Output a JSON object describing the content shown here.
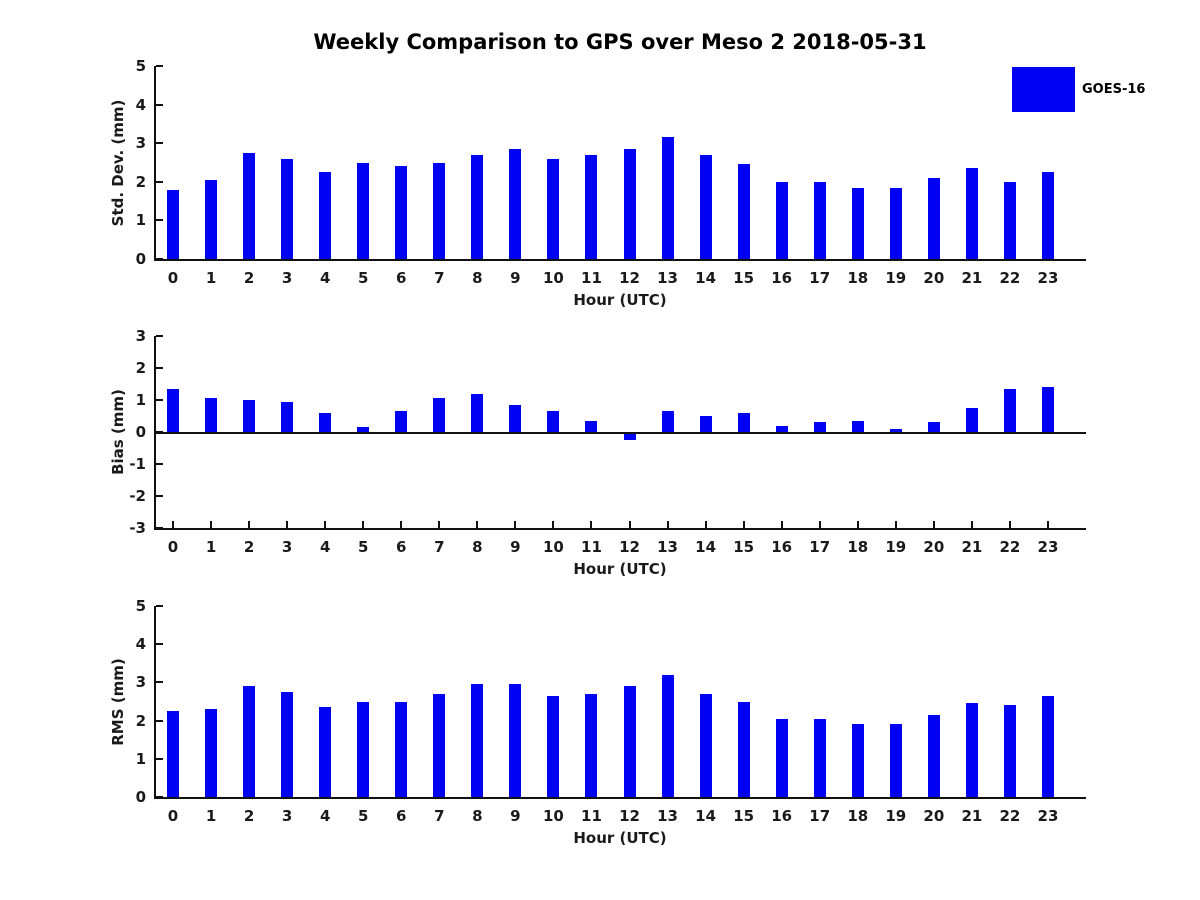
{
  "title": "Weekly Comparison to GPS over Meso 2 2018-05-31",
  "legend": {
    "label": "GOES-16",
    "color": "#0000f2",
    "position": "top-right"
  },
  "colors": {
    "bar": "#0000f2",
    "axis": "#111111",
    "background": "#ffffff",
    "text": "#1a1a1a"
  },
  "chart_data": [
    {
      "type": "bar",
      "title": "",
      "ylabel": "Std. Dev. (mm)",
      "xlabel": "Hour (UTC)",
      "ylim": [
        0,
        5
      ],
      "yticks": [
        0,
        1,
        2,
        3,
        4,
        5
      ],
      "xlim": [
        -0.5,
        24
      ],
      "grid": false,
      "categories": [
        "0",
        "1",
        "2",
        "3",
        "4",
        "5",
        "6",
        "7",
        "8",
        "9",
        "10",
        "11",
        "12",
        "13",
        "14",
        "15",
        "16",
        "17",
        "18",
        "19",
        "20",
        "21",
        "22",
        "23"
      ],
      "series": [
        {
          "name": "GOES-16",
          "values": [
            1.8,
            2.05,
            2.75,
            2.6,
            2.25,
            2.5,
            2.4,
            2.5,
            2.7,
            2.85,
            2.6,
            2.7,
            2.85,
            3.15,
            2.7,
            2.45,
            2.0,
            2.0,
            1.85,
            1.85,
            2.1,
            2.35,
            2.0,
            2.25
          ]
        }
      ]
    },
    {
      "type": "bar",
      "title": "",
      "ylabel": "Bias (mm)",
      "xlabel": "Hour (UTC)",
      "ylim": [
        -3,
        3
      ],
      "yticks": [
        -3,
        -2,
        -1,
        0,
        1,
        2,
        3
      ],
      "xlim": [
        -0.5,
        24
      ],
      "grid": false,
      "categories": [
        "0",
        "1",
        "2",
        "3",
        "4",
        "5",
        "6",
        "7",
        "8",
        "9",
        "10",
        "11",
        "12",
        "13",
        "14",
        "15",
        "16",
        "17",
        "18",
        "19",
        "20",
        "21",
        "22",
        "23"
      ],
      "series": [
        {
          "name": "GOES-16",
          "values": [
            1.35,
            1.05,
            1.0,
            0.95,
            0.6,
            0.15,
            0.65,
            1.05,
            1.2,
            0.85,
            0.65,
            0.35,
            -0.25,
            0.65,
            0.5,
            0.6,
            0.2,
            0.3,
            0.35,
            0.1,
            0.3,
            0.75,
            1.35,
            1.4
          ]
        }
      ]
    },
    {
      "type": "bar",
      "title": "",
      "ylabel": "RMS (mm)",
      "xlabel": "Hour (UTC)",
      "ylim": [
        0,
        5
      ],
      "yticks": [
        0,
        1,
        2,
        3,
        4,
        5
      ],
      "xlim": [
        -0.5,
        24
      ],
      "grid": false,
      "categories": [
        "0",
        "1",
        "2",
        "3",
        "4",
        "5",
        "6",
        "7",
        "8",
        "9",
        "10",
        "11",
        "12",
        "13",
        "14",
        "15",
        "16",
        "17",
        "18",
        "19",
        "20",
        "21",
        "22",
        "23"
      ],
      "series": [
        {
          "name": "GOES-16",
          "values": [
            2.25,
            2.3,
            2.9,
            2.75,
            2.35,
            2.5,
            2.5,
            2.7,
            2.95,
            2.95,
            2.65,
            2.7,
            2.9,
            3.2,
            2.7,
            2.5,
            2.05,
            2.05,
            1.9,
            1.9,
            2.15,
            2.45,
            2.4,
            2.65
          ]
        }
      ]
    }
  ]
}
